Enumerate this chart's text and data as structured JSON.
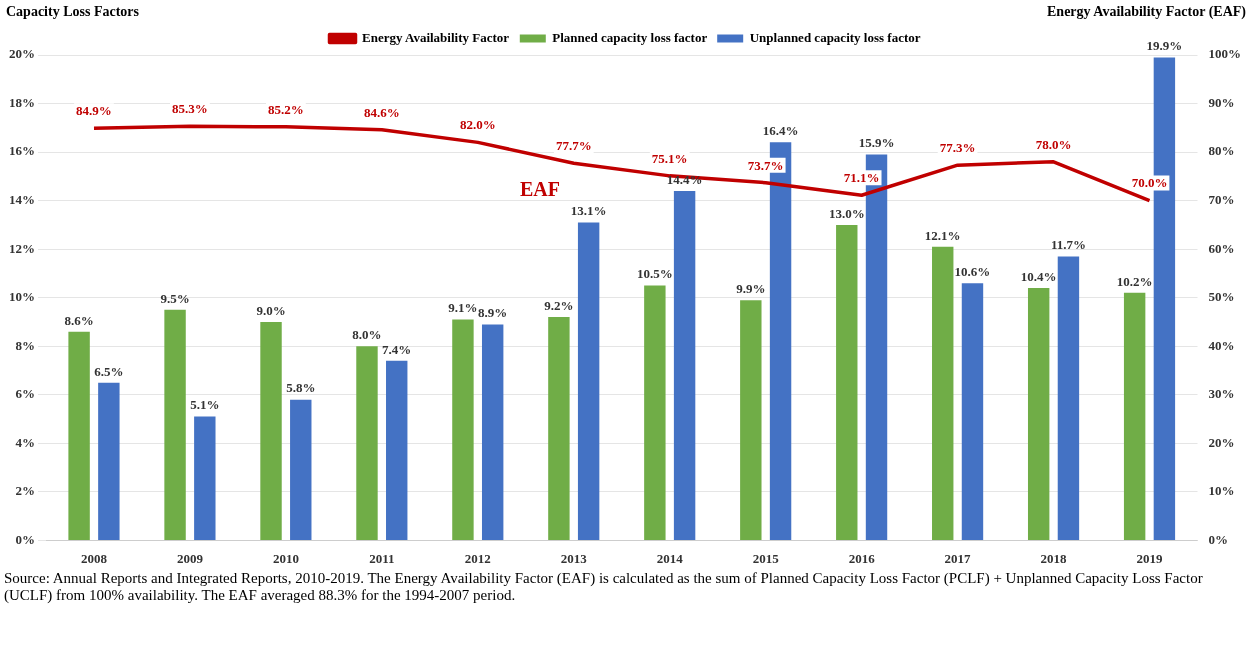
{
  "chart_data": {
    "type": "bar",
    "ylabel": "Capacity Loss Factors",
    "y2label": "Energy Availability Factor (EAF)",
    "categories": [
      "2008",
      "2009",
      "2010",
      "2011",
      "2012",
      "2013",
      "2014",
      "2015",
      "2016",
      "2017",
      "2018",
      "2019"
    ],
    "series": [
      {
        "name": "Planned capacity loss factor",
        "color": "#70ad47",
        "values": [
          8.6,
          9.5,
          9.0,
          8.0,
          9.1,
          9.2,
          10.5,
          9.9,
          13.0,
          12.1,
          10.4,
          10.2
        ],
        "value_labels": [
          "8.6%",
          "9.5%",
          "9.0%",
          "8.0%",
          "9.1%",
          "9.2%",
          "10.5%",
          "9.9%",
          "13.0%",
          "12.1%",
          "10.4%",
          "10.2%"
        ]
      },
      {
        "name": "Unplanned capacity loss factor",
        "color": "#4472c4",
        "values": [
          6.5,
          5.1,
          5.8,
          7.4,
          8.9,
          13.1,
          14.4,
          16.4,
          15.9,
          10.6,
          11.7,
          19.9
        ],
        "value_labels": [
          "6.5%",
          "5.1%",
          "5.8%",
          "7.4%",
          "8.9%",
          "13.1%",
          "14.4%",
          "16.4%",
          "15.9%",
          "10.6%",
          "11.7%",
          "19.9%"
        ]
      },
      {
        "name": "Energy Availability Factor",
        "type": "line",
        "axis": "y2",
        "color": "#c00000",
        "values": [
          84.9,
          85.3,
          85.2,
          84.6,
          82.0,
          77.7,
          75.1,
          73.7,
          71.1,
          77.3,
          78.0,
          70.0
        ],
        "value_labels": [
          "84.9%",
          "85.3%",
          "85.2%",
          "84.6%",
          "82.0%",
          "77.7%",
          "75.1%",
          "73.7%",
          "71.1%",
          "77.3%",
          "78.0%",
          "70.0%"
        ]
      }
    ],
    "ylim": [
      0,
      20
    ],
    "yticks": [
      {
        "value": 0,
        "label": "0%"
      },
      {
        "value": 2,
        "label": "2%"
      },
      {
        "value": 4,
        "label": "4%"
      },
      {
        "value": 6,
        "label": "6%"
      },
      {
        "value": 8,
        "label": "8%"
      },
      {
        "value": 10,
        "label": "10%"
      },
      {
        "value": 12,
        "label": "12%"
      },
      {
        "value": 14,
        "label": "14%"
      },
      {
        "value": 16,
        "label": "16%"
      },
      {
        "value": 18,
        "label": "18%"
      },
      {
        "value": 20,
        "label": "20%"
      }
    ],
    "y2lim": [
      0,
      100
    ],
    "y2ticks": [
      {
        "value": 0,
        "label": "0%"
      },
      {
        "value": 10,
        "label": "10%"
      },
      {
        "value": 20,
        "label": "20%"
      },
      {
        "value": 30,
        "label": "30%"
      },
      {
        "value": 40,
        "label": "40%"
      },
      {
        "value": 50,
        "label": "50%"
      },
      {
        "value": 60,
        "label": "60%"
      },
      {
        "value": 70,
        "label": "70%"
      },
      {
        "value": 80,
        "label": "80%"
      },
      {
        "value": 90,
        "label": "90%"
      },
      {
        "value": 100,
        "label": "100%"
      }
    ],
    "grid": "y",
    "legend": "top",
    "marker": "none",
    "line_style": "solid",
    "annotations": [
      "EAF",
      "Source: Annual Reports and Integrated Reports, 2010-2019. The Energy Availability Factor (EAF) is calculated as the sum of Planned Capacity Loss Factor (PCLF) + Unplanned Capacity Loss Factor (UCLF) from 100% availability. The EAF averaged 88.3% for the 1994-2007 period."
    ]
  }
}
